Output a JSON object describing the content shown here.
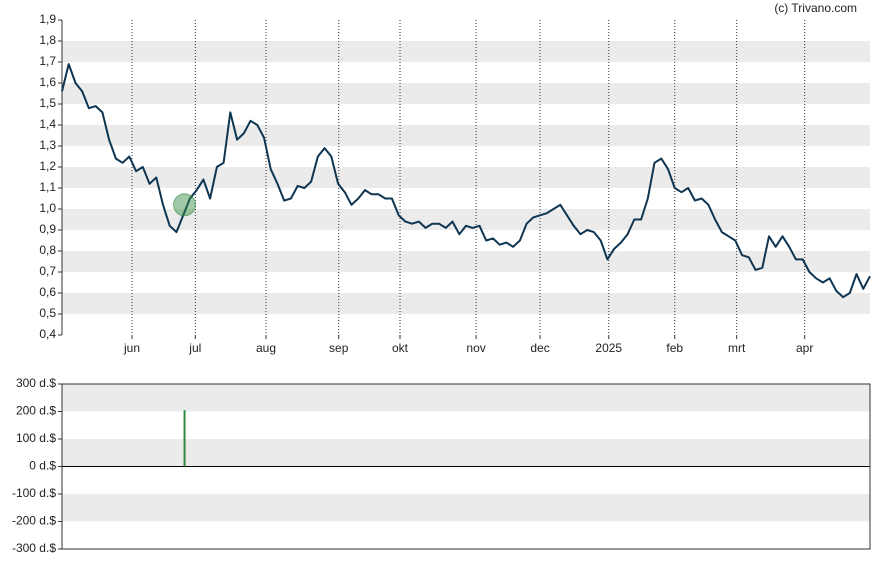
{
  "chart_data": [
    {
      "type": "line",
      "source": "(c) Trivano.com",
      "xlim": [
        0,
        120
      ],
      "ylim": [
        0.4,
        1.9
      ],
      "stripes": true,
      "yticks": [
        {
          "value": 0.4,
          "label": "0,4"
        },
        {
          "value": 0.5,
          "label": "0,5"
        },
        {
          "value": 0.6,
          "label": "0,6"
        },
        {
          "value": 0.7,
          "label": "0,7"
        },
        {
          "value": 0.8,
          "label": "0,8"
        },
        {
          "value": 0.9,
          "label": "0,9"
        },
        {
          "value": 1.0,
          "label": "1,0"
        },
        {
          "value": 1.1,
          "label": "1,1"
        },
        {
          "value": 1.2,
          "label": "1,2"
        },
        {
          "value": 1.3,
          "label": "1,3"
        },
        {
          "value": 1.4,
          "label": "1,4"
        },
        {
          "value": 1.5,
          "label": "1,5"
        },
        {
          "value": 1.6,
          "label": "1,6"
        },
        {
          "value": 1.7,
          "label": "1,7"
        },
        {
          "value": 1.8,
          "label": "1,8"
        },
        {
          "value": 1.9,
          "label": "1,9"
        }
      ],
      "xticks": [
        {
          "value": 10.4,
          "label": "jun"
        },
        {
          "value": 19.8,
          "label": "jul"
        },
        {
          "value": 30.3,
          "label": "aug"
        },
        {
          "value": 41.1,
          "label": "sep"
        },
        {
          "value": 50.2,
          "label": "okt"
        },
        {
          "value": 61.5,
          "label": "nov"
        },
        {
          "value": 71,
          "label": "dec"
        },
        {
          "value": 81.2,
          "label": "2025"
        },
        {
          "value": 91,
          "label": "feb"
        },
        {
          "value": 100.2,
          "label": "mrt"
        },
        {
          "value": 110.3,
          "label": "apr"
        }
      ],
      "series": [
        {
          "color": "#0e3552",
          "values": [
            1.56,
            1.69,
            1.6,
            1.56,
            1.48,
            1.49,
            1.46,
            1.33,
            1.24,
            1.22,
            1.25,
            1.18,
            1.2,
            1.12,
            1.15,
            1.02,
            0.92,
            0.89,
            0.97,
            1.05,
            1.09,
            1.14,
            1.05,
            1.2,
            1.22,
            1.46,
            1.33,
            1.36,
            1.42,
            1.4,
            1.34,
            1.19,
            1.12,
            1.04,
            1.05,
            1.11,
            1.1,
            1.13,
            1.25,
            1.29,
            1.25,
            1.12,
            1.08,
            1.02,
            1.05,
            1.09,
            1.07,
            1.07,
            1.05,
            1.05,
            0.97,
            0.94,
            0.93,
            0.94,
            0.91,
            0.93,
            0.93,
            0.91,
            0.94,
            0.88,
            0.92,
            0.91,
            0.92,
            0.85,
            0.86,
            0.83,
            0.84,
            0.82,
            0.85,
            0.93,
            0.96,
            0.97,
            0.98,
            1.0,
            1.02,
            0.97,
            0.92,
            0.88,
            0.9,
            0.89,
            0.85,
            0.76,
            0.81,
            0.84,
            0.88,
            0.95,
            0.95,
            1.05,
            1.22,
            1.24,
            1.19,
            1.1,
            1.08,
            1.1,
            1.04,
            1.05,
            1.02,
            0.95,
            0.89,
            0.87,
            0.85,
            0.78,
            0.77,
            0.71,
            0.72,
            0.87,
            0.82,
            0.87,
            0.82,
            0.76,
            0.76,
            0.7,
            0.67,
            0.65,
            0.67,
            0.61,
            0.58,
            0.6,
            0.69,
            0.62,
            0.68
          ]
        }
      ],
      "markers": {
        "color": "#2e8b3e",
        "x": [
          18.2
        ],
        "values": [
          1.02
        ]
      }
    },
    {
      "type": "bar",
      "xlim": [
        0,
        120
      ],
      "ylim": [
        -300,
        300
      ],
      "color": "#2e8b3e",
      "x": [
        18.2
      ],
      "values": [
        205
      ],
      "yticks": [
        {
          "value": -300,
          "label": "-300 d.$"
        },
        {
          "value": -200,
          "label": "-200 d.$"
        },
        {
          "value": -100,
          "label": "-100 d.$"
        },
        {
          "value": 0,
          "label": "0 d.$"
        },
        {
          "value": 100,
          "label": "100 d.$"
        },
        {
          "value": 200,
          "label": "200 d.$"
        },
        {
          "value": 300,
          "label": "300 d.$"
        }
      ]
    }
  ]
}
